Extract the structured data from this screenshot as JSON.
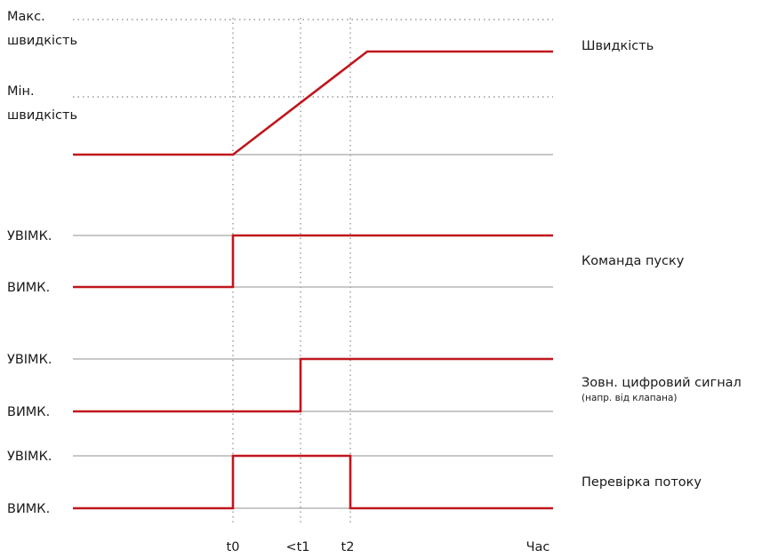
{
  "speed_panel": {
    "max_label_line1": "Макс.",
    "max_label_line2": "швидкість",
    "min_label_line1": "Мін.",
    "min_label_line2": "швидкість",
    "title": "Швидкість"
  },
  "start_command": {
    "on_label": "УВІМК.",
    "off_label": "ВИМК.",
    "title": "Команда пуску"
  },
  "ext_digital": {
    "on_label": "УВІМК.",
    "off_label": "ВИМК.",
    "title": "Зовн. цифровий сигнал",
    "subtitle": "(напр. від клапана)"
  },
  "flow_check": {
    "on_label": "УВІМК.",
    "off_label": "ВИМК.",
    "title": "Перевірка потоку"
  },
  "time_axis": {
    "t0": "t0",
    "t1": "<t1",
    "t2": "t2",
    "label": "Час"
  },
  "colors": {
    "signal": "#c0161d",
    "reference": "#a6a6a6",
    "text": "#1a1a1a"
  }
}
